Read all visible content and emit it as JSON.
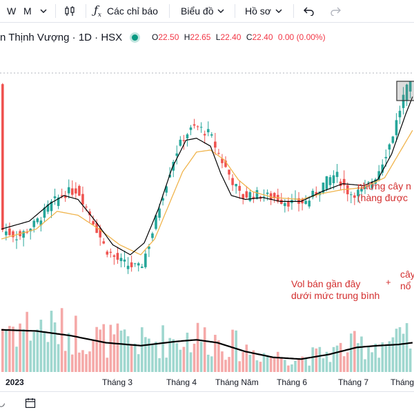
{
  "toolbar": {
    "interval": "W",
    "interval2": "M",
    "indicators_label": "Các chỉ báo",
    "chart_label": "Biểu đồ",
    "profile_label": "Hồ sơ"
  },
  "legend": {
    "title": "n Thịnh Vượng · 1D · HSX",
    "o_key": "O",
    "o_val": "22.50",
    "h_key": "H",
    "h_val": "22.65",
    "l_key": "L",
    "l_val": "22.40",
    "c_key": "C",
    "c_val": "22.40",
    "change": "0.00 (0.00%)",
    "status_color": "#089981"
  },
  "annotations": {
    "top_right_1": "những cây n",
    "top_right_2": "(hàng được",
    "vol_1": "Vol bán gần đây",
    "vol_2": "dưới mức trung bình",
    "plus": "+",
    "right_1": "cây",
    "right_2": "nổ"
  },
  "xaxis": {
    "labels": [
      "2023",
      "Tháng 3",
      "Tháng 4",
      "Tháng Năm",
      "Tháng 6",
      "Tháng 7",
      "Tháng"
    ]
  },
  "colors": {
    "up": "#26a69a",
    "down": "#ef5350",
    "ma_fast": "#000000",
    "ma_slow": "#f0b44c",
    "volume_ma": "#000000",
    "annotation": "#d32f2f"
  },
  "chart_data": {
    "type": "candlestick",
    "price_path": [
      [
        0,
        21.0
      ],
      [
        5,
        20.6
      ],
      [
        10,
        21.3
      ],
      [
        14,
        22.2
      ],
      [
        18,
        22.8
      ],
      [
        22,
        23.0
      ],
      [
        26,
        21.6
      ],
      [
        30,
        20.0
      ],
      [
        33,
        19.5
      ],
      [
        36,
        19.2
      ],
      [
        40,
        19.0
      ],
      [
        43,
        20.5
      ],
      [
        46,
        22.5
      ],
      [
        50,
        24.8
      ],
      [
        53,
        25.8
      ],
      [
        56,
        26.2
      ],
      [
        60,
        25.8
      ],
      [
        63,
        24.6
      ],
      [
        66,
        23.6
      ],
      [
        69,
        22.6
      ],
      [
        72,
        22.8
      ],
      [
        75,
        22.7
      ],
      [
        78,
        22.6
      ],
      [
        80,
        22.5
      ],
      [
        84,
        22.3
      ],
      [
        88,
        22.4
      ],
      [
        92,
        23.2
      ],
      [
        96,
        23.8
      ],
      [
        100,
        22.8
      ],
      [
        104,
        22.9
      ],
      [
        108,
        23.8
      ],
      [
        112,
        25.5
      ],
      [
        116,
        28.0
      ],
      [
        118,
        28.3
      ]
    ],
    "ma_fast_path": [
      [
        0,
        21.0
      ],
      [
        8,
        21.4
      ],
      [
        14,
        22.3
      ],
      [
        18,
        22.7
      ],
      [
        22,
        22.5
      ],
      [
        27,
        21.4
      ],
      [
        32,
        20.2
      ],
      [
        37,
        19.7
      ],
      [
        41,
        20.3
      ],
      [
        45,
        22.0
      ],
      [
        49,
        24.1
      ],
      [
        53,
        25.5
      ],
      [
        56,
        25.6
      ],
      [
        60,
        25.2
      ],
      [
        63,
        23.8
      ],
      [
        66,
        22.7
      ],
      [
        70,
        22.5
      ],
      [
        75,
        22.6
      ],
      [
        80,
        22.4
      ],
      [
        86,
        22.4
      ],
      [
        92,
        22.9
      ],
      [
        98,
        23.3
      ],
      [
        104,
        23.2
      ],
      [
        108,
        23.5
      ],
      [
        112,
        24.8
      ],
      [
        116,
        26.8
      ],
      [
        118,
        27.7
      ]
    ],
    "ma_slow_path": [
      [
        0,
        20.5
      ],
      [
        10,
        21.0
      ],
      [
        16,
        21.9
      ],
      [
        22,
        21.7
      ],
      [
        28,
        21.0
      ],
      [
        34,
        20.2
      ],
      [
        40,
        19.7
      ],
      [
        44,
        20.5
      ],
      [
        48,
        22.2
      ],
      [
        52,
        23.9
      ],
      [
        56,
        24.9
      ],
      [
        60,
        25.0
      ],
      [
        64,
        24.5
      ],
      [
        68,
        23.5
      ],
      [
        72,
        22.9
      ],
      [
        78,
        22.6
      ],
      [
        86,
        22.5
      ],
      [
        92,
        22.8
      ],
      [
        98,
        23.0
      ],
      [
        104,
        23.1
      ],
      [
        110,
        23.6
      ],
      [
        114,
        24.8
      ],
      [
        118,
        26.0
      ]
    ],
    "volume_ma_path": [
      [
        0,
        0.72
      ],
      [
        10,
        0.7
      ],
      [
        20,
        0.62
      ],
      [
        30,
        0.5
      ],
      [
        40,
        0.45
      ],
      [
        50,
        0.52
      ],
      [
        56,
        0.55
      ],
      [
        62,
        0.5
      ],
      [
        70,
        0.35
      ],
      [
        78,
        0.25
      ],
      [
        86,
        0.22
      ],
      [
        94,
        0.3
      ],
      [
        102,
        0.42
      ],
      [
        108,
        0.45
      ],
      [
        114,
        0.47
      ],
      [
        118,
        0.5
      ]
    ],
    "ylim": [
      18.3,
      28.9
    ],
    "n_bars": 118
  }
}
